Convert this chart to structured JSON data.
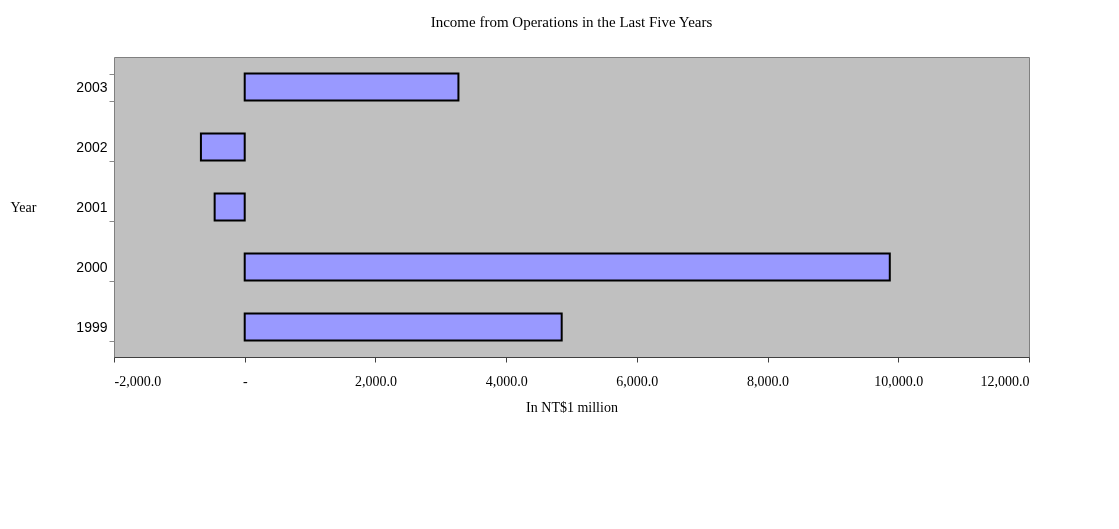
{
  "chart_data": {
    "type": "bar",
    "orientation": "horizontal",
    "title": "Income from Operations in the Last Five Years",
    "xlabel": "In NT$1 million",
    "ylabel": "Year",
    "categories": [
      "2003",
      "2002",
      "2001",
      "2000",
      "1999"
    ],
    "values": [
      3270,
      -670,
      -460,
      9870,
      4850
    ],
    "color": "#9999ff",
    "xlim": [
      -2000,
      12000
    ],
    "xticks": [
      {
        "value": -2000,
        "label": "-2,000.0"
      },
      {
        "value": 0,
        "label": "-"
      },
      {
        "value": 2000,
        "label": "2,000.0"
      },
      {
        "value": 4000,
        "label": "4,000.0"
      },
      {
        "value": 6000,
        "label": "6,000.0"
      },
      {
        "value": 8000,
        "label": "8,000.0"
      },
      {
        "value": 10000,
        "label": "10,000.0"
      },
      {
        "value": 12000,
        "label": "12,000.0"
      }
    ],
    "grid": false
  }
}
